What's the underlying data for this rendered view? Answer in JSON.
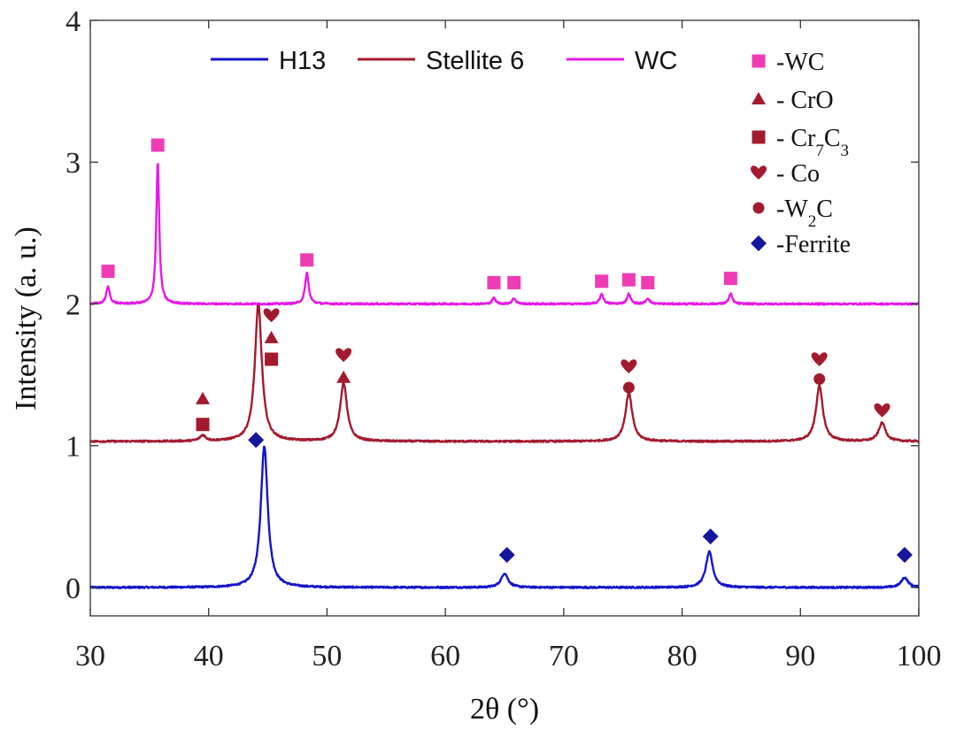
{
  "chart_data": {
    "type": "line",
    "title": "",
    "xlabel": "2θ (°)",
    "ylabel": "Intensity (a. u.)",
    "xlim": [
      30,
      100
    ],
    "ylim": [
      -0.2,
      4
    ],
    "xticks": [
      30,
      40,
      50,
      60,
      70,
      80,
      90,
      100
    ],
    "yticks": [
      0,
      1,
      2,
      3,
      4
    ],
    "grid": false,
    "legend_position": "top-center",
    "series": [
      {
        "name": "H13",
        "color": "#1414cc",
        "baseline": 0.0,
        "peaks": [
          {
            "x": 44.7,
            "height": 1.0,
            "width": 0.35
          },
          {
            "x": 65.0,
            "height": 0.1,
            "width": 0.35
          },
          {
            "x": 82.3,
            "height": 0.25,
            "width": 0.35
          },
          {
            "x": 98.8,
            "height": 0.07,
            "width": 0.35
          }
        ]
      },
      {
        "name": "Stellite 6",
        "color": "#a31a2e",
        "baseline": 1.03,
        "peaks": [
          {
            "x": 39.5,
            "height": 0.04,
            "width": 0.3
          },
          {
            "x": 44.2,
            "height": 0.97,
            "width": 0.35
          },
          {
            "x": 51.4,
            "height": 0.41,
            "width": 0.35
          },
          {
            "x": 75.5,
            "height": 0.34,
            "width": 0.35
          },
          {
            "x": 91.6,
            "height": 0.39,
            "width": 0.35
          },
          {
            "x": 96.9,
            "height": 0.13,
            "width": 0.35
          }
        ]
      },
      {
        "name": "WC",
        "color": "#e619e6",
        "baseline": 2.0,
        "peaks": [
          {
            "x": 31.5,
            "height": 0.12,
            "width": 0.18
          },
          {
            "x": 35.7,
            "height": 1.0,
            "width": 0.15
          },
          {
            "x": 48.3,
            "height": 0.22,
            "width": 0.18
          },
          {
            "x": 64.1,
            "height": 0.04,
            "width": 0.18
          },
          {
            "x": 65.8,
            "height": 0.04,
            "width": 0.18
          },
          {
            "x": 73.2,
            "height": 0.07,
            "width": 0.18
          },
          {
            "x": 75.5,
            "height": 0.07,
            "width": 0.18
          },
          {
            "x": 77.1,
            "height": 0.04,
            "width": 0.18
          },
          {
            "x": 84.1,
            "height": 0.07,
            "width": 0.18
          }
        ]
      }
    ],
    "annotations": [
      {
        "phase": "WC",
        "x": 31.5,
        "y": 2.23
      },
      {
        "phase": "WC",
        "x": 35.7,
        "y": 3.12
      },
      {
        "phase": "WC",
        "x": 48.3,
        "y": 2.31
      },
      {
        "phase": "WC",
        "x": 64.1,
        "y": 2.15
      },
      {
        "phase": "WC",
        "x": 65.8,
        "y": 2.15
      },
      {
        "phase": "WC",
        "x": 73.2,
        "y": 2.16
      },
      {
        "phase": "WC",
        "x": 75.5,
        "y": 2.17
      },
      {
        "phase": "WC",
        "x": 77.1,
        "y": 2.15
      },
      {
        "phase": "WC",
        "x": 84.1,
        "y": 2.18
      },
      {
        "phase": "CrO",
        "x": 39.5,
        "y": 1.33
      },
      {
        "phase": "Cr7C3",
        "x": 39.5,
        "y": 1.15
      },
      {
        "phase": "Co",
        "x": 45.3,
        "y": 1.92
      },
      {
        "phase": "CrO",
        "x": 45.3,
        "y": 1.76
      },
      {
        "phase": "Cr7C3",
        "x": 45.3,
        "y": 1.61
      },
      {
        "phase": "Co",
        "x": 51.4,
        "y": 1.64
      },
      {
        "phase": "CrO",
        "x": 51.4,
        "y": 1.48
      },
      {
        "phase": "Co",
        "x": 75.5,
        "y": 1.56
      },
      {
        "phase": "W2C",
        "x": 75.5,
        "y": 1.41
      },
      {
        "phase": "Co",
        "x": 91.6,
        "y": 1.61
      },
      {
        "phase": "W2C",
        "x": 91.6,
        "y": 1.47
      },
      {
        "phase": "Co",
        "x": 96.9,
        "y": 1.25
      },
      {
        "phase": "Ferrite",
        "x": 44.0,
        "y": 1.04
      },
      {
        "phase": "Ferrite",
        "x": 65.2,
        "y": 0.23
      },
      {
        "phase": "Ferrite",
        "x": 82.4,
        "y": 0.36
      },
      {
        "phase": "Ferrite",
        "x": 98.8,
        "y": 0.23
      }
    ],
    "marker_legend": [
      {
        "phase": "WC",
        "label": "-WC",
        "shape": "square",
        "color": "#f03cb4"
      },
      {
        "phase": "CrO",
        "label": "- CrO",
        "shape": "triangle",
        "color": "#a31a2e"
      },
      {
        "phase": "Cr7C3",
        "label": "- Cr",
        "sub1": "7",
        "mid": "C",
        "sub2": "3",
        "shape": "square",
        "color": "#a31a2e"
      },
      {
        "phase": "Co",
        "label": "- Co",
        "shape": "heart",
        "color": "#a31a2e"
      },
      {
        "phase": "W2C",
        "label": "-W",
        "sub1": "2",
        "mid": "C",
        "shape": "circle",
        "color": "#a31a2e"
      },
      {
        "phase": "Ferrite",
        "label": "-Ferrite",
        "shape": "diamond",
        "color": "#15159e"
      }
    ]
  }
}
